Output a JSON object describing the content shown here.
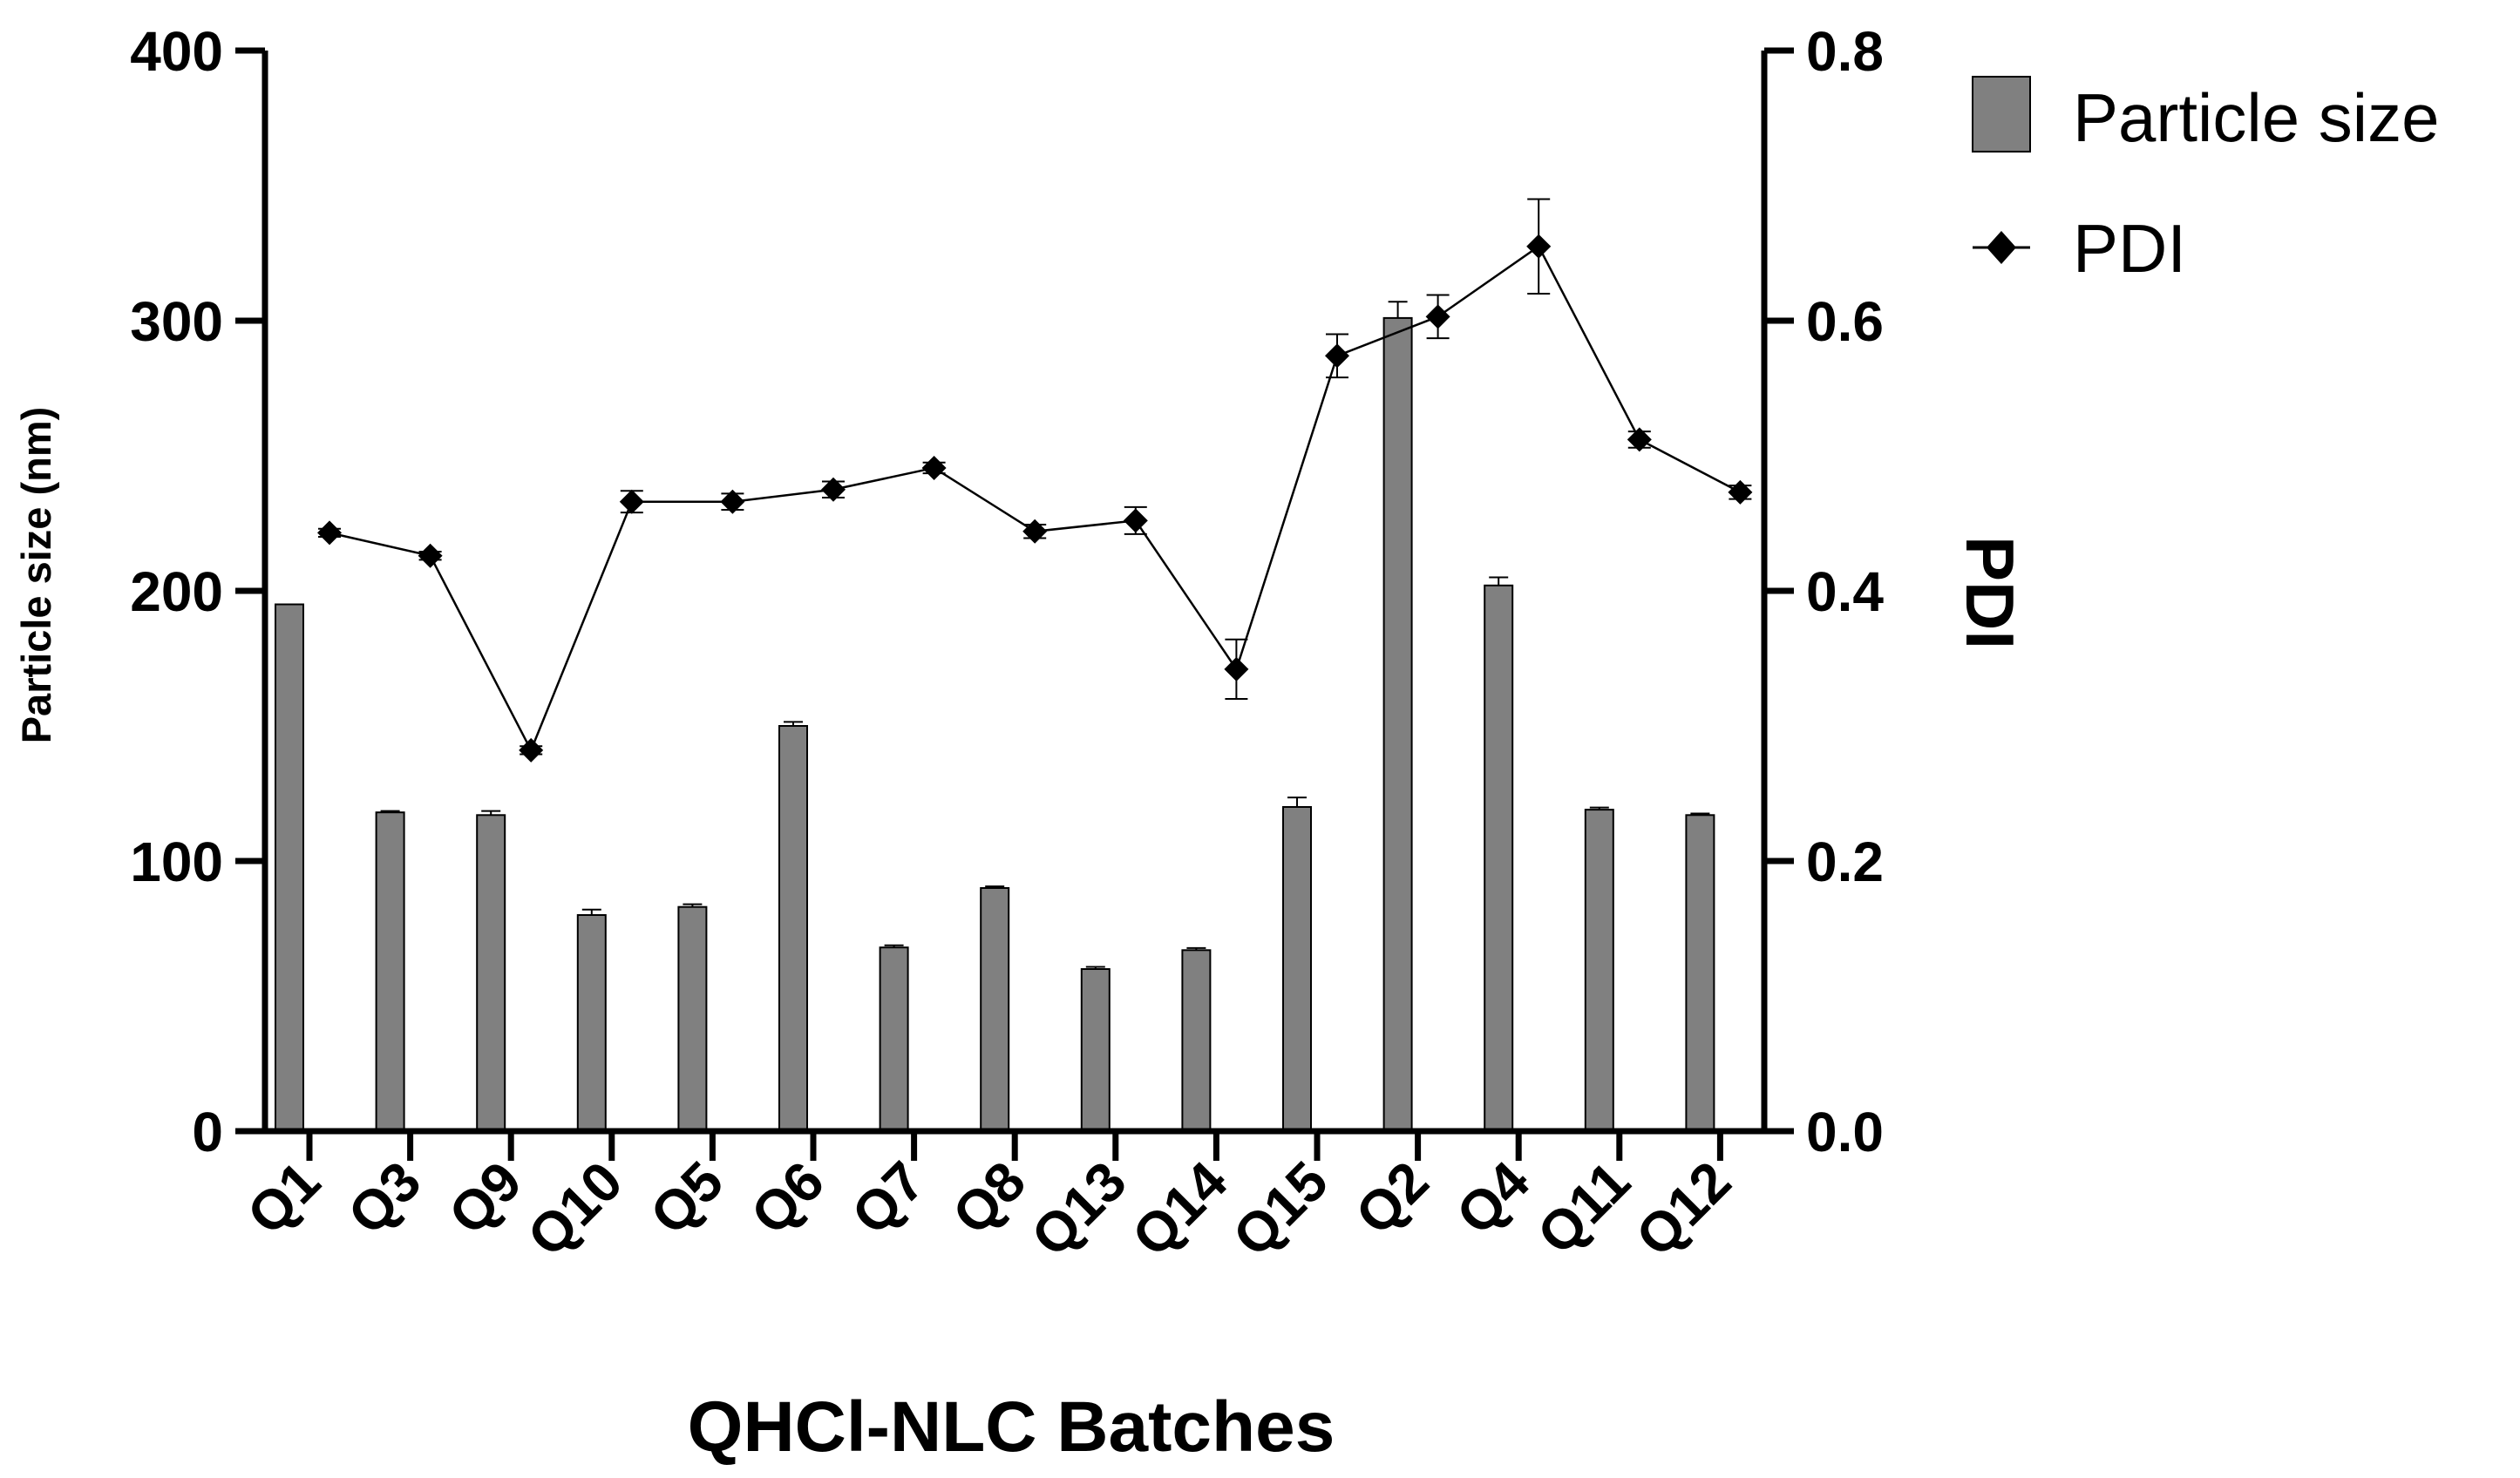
{
  "chart_data": {
    "type": "bar+line",
    "xlabel": "QHCl-NLC Batches",
    "ylabel_left": "Particle size (nm)",
    "ylabel_right": "PDI",
    "categories": [
      "Q1",
      "Q3",
      "Q9",
      "Q10",
      "Q5",
      "Q6",
      "Q7",
      "Q8",
      "Q13",
      "Q14",
      "Q15",
      "Q2",
      "Q4",
      "Q11",
      "Q12"
    ],
    "ylim_left": [
      0,
      400
    ],
    "ylim_right": [
      0.0,
      0.8
    ],
    "left_ticks": [
      "0",
      "100",
      "200",
      "300",
      "400"
    ],
    "right_ticks": [
      "0.0",
      "0.2",
      "0.4",
      "0.6",
      "0.8"
    ],
    "grid": false,
    "legend_position": "top-right",
    "colors": {
      "bar": "#808080",
      "line": "#000000"
    },
    "series": [
      {
        "name": "Particle size",
        "kind": "bar",
        "axis": "left",
        "values": [
          195,
          118,
          117,
          80,
          83,
          150,
          68,
          90,
          60,
          67,
          120,
          301,
          202,
          119,
          117
        ],
        "errors": [
          0,
          0.5,
          1.5,
          2,
          1,
          1.5,
          0.8,
          0.6,
          0.8,
          0.8,
          3.5,
          6,
          3,
          0.8,
          0.6
        ]
      },
      {
        "name": "PDI",
        "kind": "line",
        "axis": "right",
        "values": [
          0.443,
          0.426,
          0.282,
          0.466,
          0.466,
          0.475,
          0.491,
          0.444,
          0.452,
          0.342,
          0.574,
          0.603,
          0.655,
          0.512,
          0.473
        ],
        "errors": [
          0.003,
          0.003,
          0.003,
          0.008,
          0.006,
          0.006,
          0.004,
          0.005,
          0.01,
          0.022,
          0.016,
          0.016,
          0.035,
          0.006,
          0.005
        ]
      }
    ]
  }
}
